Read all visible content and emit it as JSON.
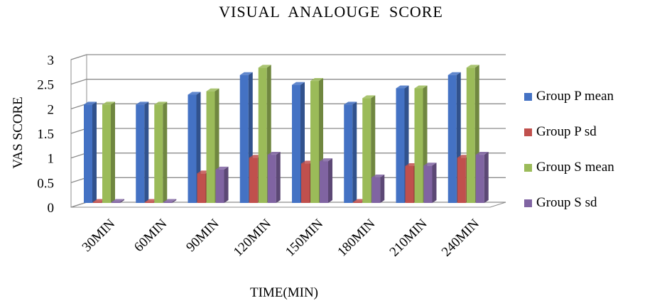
{
  "chart_data": {
    "type": "bar",
    "title": "VISUAL  ANALOUGE  SCORE",
    "xlabel": "TIME(MIN)",
    "ylabel": "VAS SCORE",
    "ylim": [
      0,
      3
    ],
    "yticks": [
      "0",
      "0.5",
      "1",
      "1.5",
      "2",
      "2.5",
      "3"
    ],
    "categories": [
      "30MIN",
      "60MIN",
      "90MIN",
      "120MIN",
      "150MIN",
      "180MIN",
      "210MIN",
      "240MIN"
    ],
    "series": [
      {
        "name": "Group P mean",
        "color": "#4472C4",
        "values": [
          2.0,
          2.0,
          2.2,
          2.6,
          2.4,
          2.0,
          2.33,
          2.6
        ]
      },
      {
        "name": "Group P sd",
        "color": "#C0504D",
        "values": [
          0,
          0,
          0.6,
          0.92,
          0.8,
          0,
          0.75,
          0.92
        ]
      },
      {
        "name": "Group S mean",
        "color": "#9BBB59",
        "values": [
          2.0,
          2.0,
          2.27,
          2.75,
          2.48,
          2.13,
          2.33,
          2.75
        ]
      },
      {
        "name": "Group S sd",
        "color": "#8064A2",
        "values": [
          0,
          0,
          0.68,
          0.98,
          0.85,
          0.52,
          0.76,
          0.98
        ]
      }
    ],
    "grid": true,
    "legend_position": "right"
  }
}
